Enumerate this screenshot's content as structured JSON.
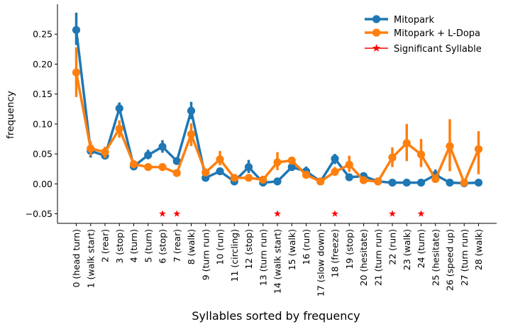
{
  "chart_data": {
    "type": "line",
    "xlabel": "Syllables sorted by frequency",
    "ylabel": "frequency",
    "ylim": [
      -0.066,
      0.3
    ],
    "yticks": [
      -0.05,
      0.0,
      0.05,
      0.1,
      0.15,
      0.2,
      0.25
    ],
    "ytick_labels": [
      "−0.05",
      "0.00",
      "0.05",
      "0.10",
      "0.15",
      "0.20",
      "0.25"
    ],
    "grid": false,
    "legend_position": "top-right",
    "categories": [
      "0 (head turn)",
      "1 (walk start)",
      "2 (rear)",
      "3 (stop)",
      "4 (turn)",
      "5 (turn)",
      "6 (stop)",
      "7 (rear)",
      "8 (walk)",
      "9 (turn run)",
      "10 (run)",
      "11 (circling)",
      "12 (stop)",
      "13 (turn run)",
      "14 (walk start)",
      "15 (walk)",
      "16 (run)",
      "17 (slow down)",
      "18 (freeze)",
      "19 (stop)",
      "20 (hesitate)",
      "21 (turn run)",
      "22 (run)",
      "23 (walk)",
      "24 (turn)",
      "25 (hesitate)",
      "26 (speed up)",
      "27 (turn run)",
      "28 (walk)"
    ],
    "series": [
      {
        "name": "Mitopark",
        "color": "#1f77b4",
        "values": [
          0.257,
          0.055,
          0.047,
          0.126,
          0.029,
          0.048,
          0.062,
          0.038,
          0.122,
          0.01,
          0.021,
          0.004,
          0.028,
          0.002,
          0.004,
          0.028,
          0.021,
          0.004,
          0.042,
          0.011,
          0.013,
          0.004,
          0.002,
          0.002,
          0.002,
          0.015,
          0.002,
          0.001,
          0.002
        ],
        "error_low": [
          0.232,
          0.044,
          0.042,
          0.118,
          0.023,
          0.041,
          0.052,
          0.033,
          0.108,
          0.006,
          0.016,
          0.002,
          0.018,
          0.0,
          0.002,
          0.023,
          0.015,
          0.003,
          0.033,
          0.007,
          0.009,
          0.003,
          0.001,
          0.001,
          0.001,
          0.008,
          0.001,
          0.0,
          0.001
        ],
        "error_high": [
          0.286,
          0.066,
          0.054,
          0.136,
          0.036,
          0.057,
          0.073,
          0.042,
          0.137,
          0.014,
          0.025,
          0.006,
          0.04,
          0.004,
          0.006,
          0.033,
          0.029,
          0.006,
          0.05,
          0.016,
          0.019,
          0.005,
          0.003,
          0.003,
          0.003,
          0.024,
          0.003,
          0.002,
          0.003
        ]
      },
      {
        "name": "Mitopark + L-Dopa",
        "color": "#ff7f0e",
        "values": [
          0.186,
          0.059,
          0.053,
          0.092,
          0.033,
          0.028,
          0.028,
          0.018,
          0.083,
          0.019,
          0.041,
          0.01,
          0.01,
          0.007,
          0.036,
          0.039,
          0.015,
          0.004,
          0.02,
          0.032,
          0.006,
          0.004,
          0.044,
          0.068,
          0.049,
          0.008,
          0.063,
          0.002,
          0.058
        ],
        "error_low": [
          0.145,
          0.047,
          0.043,
          0.077,
          0.026,
          0.022,
          0.022,
          0.013,
          0.063,
          0.013,
          0.031,
          0.007,
          0.006,
          0.004,
          0.023,
          0.032,
          0.011,
          0.002,
          0.014,
          0.02,
          0.003,
          0.002,
          0.028,
          0.038,
          0.028,
          0.003,
          0.021,
          0.001,
          0.016
        ],
        "error_high": [
          0.228,
          0.071,
          0.062,
          0.106,
          0.039,
          0.034,
          0.034,
          0.022,
          0.101,
          0.025,
          0.055,
          0.014,
          0.014,
          0.01,
          0.053,
          0.045,
          0.02,
          0.006,
          0.028,
          0.047,
          0.009,
          0.006,
          0.061,
          0.1,
          0.075,
          0.015,
          0.108,
          0.003,
          0.088
        ]
      }
    ],
    "significant": {
      "name": "Significant Syllable",
      "color": "#ff0000",
      "marker": "star",
      "y": -0.05,
      "indices": [
        6,
        7,
        14,
        18,
        22,
        24
      ]
    }
  }
}
